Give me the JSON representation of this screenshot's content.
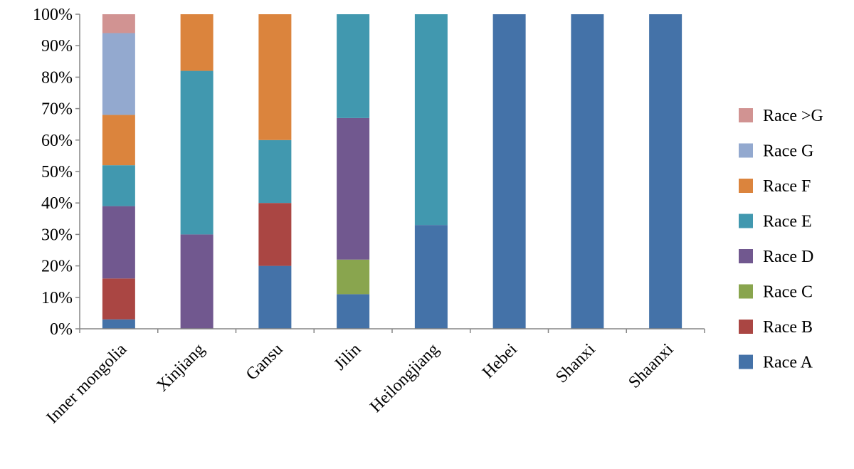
{
  "chart_data": {
    "type": "bar",
    "stacked": true,
    "percent": true,
    "categories": [
      "Inner mongolia",
      "Xinjiang",
      "Gansu",
      "Jilin",
      "Heilongjiang",
      "Hebei",
      "Shanxi",
      "Shaanxi"
    ],
    "series": [
      {
        "name": "Race A",
        "color": "#4472A8",
        "values": [
          3,
          0,
          20,
          11,
          33,
          100,
          100,
          100
        ]
      },
      {
        "name": "Race B",
        "color": "#AA4643",
        "values": [
          13,
          0,
          20,
          0,
          0,
          0,
          0,
          0
        ]
      },
      {
        "name": "Race C",
        "color": "#89A54E",
        "values": [
          0,
          0,
          0,
          11,
          0,
          0,
          0,
          0
        ]
      },
      {
        "name": "Race D",
        "color": "#71588F",
        "values": [
          23,
          30,
          0,
          45,
          0,
          0,
          0,
          0
        ]
      },
      {
        "name": "Race E",
        "color": "#4198AF",
        "values": [
          13,
          52,
          20,
          33,
          67,
          0,
          0,
          0
        ]
      },
      {
        "name": "Race F",
        "color": "#DB843D",
        "values": [
          16,
          18,
          40,
          0,
          0,
          0,
          0,
          0
        ]
      },
      {
        "name": "Race G",
        "color": "#93A9CF",
        "values": [
          26,
          0,
          0,
          0,
          0,
          0,
          0,
          0
        ]
      },
      {
        "name": "Race >G",
        "color": "#D19392",
        "values": [
          6,
          0,
          0,
          0,
          0,
          0,
          0,
          0
        ]
      }
    ],
    "y_ticks": [
      "0%",
      "10%",
      "20%",
      "30%",
      "40%",
      "50%",
      "60%",
      "70%",
      "80%",
      "90%",
      "100%"
    ],
    "ylim": [
      0,
      100
    ],
    "grid": false,
    "legend_position": "right",
    "legend_order": [
      "Race >G",
      "Race G",
      "Race F",
      "Race E",
      "Race D",
      "Race C",
      "Race B",
      "Race A"
    ],
    "axis_color": "#868686"
  }
}
